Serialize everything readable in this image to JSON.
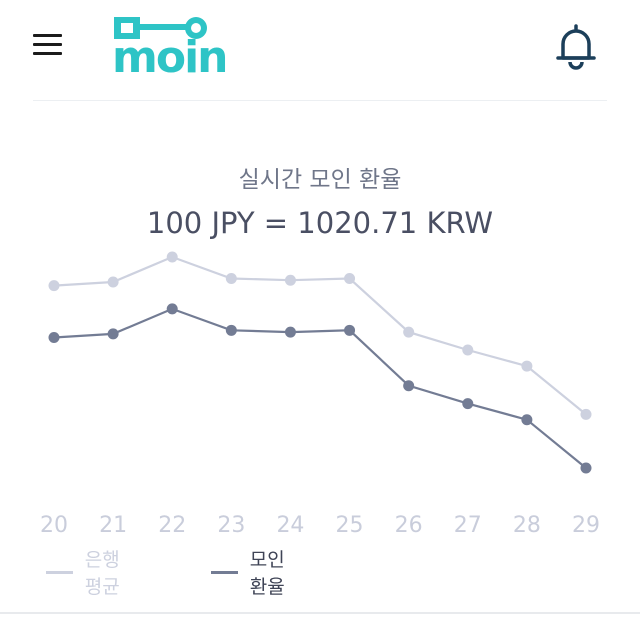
{
  "header": {
    "logo_text": "moin",
    "menu_icon": "hamburger-menu-icon",
    "bell_icon": "bell-icon"
  },
  "exchange": {
    "title": "실시간 모인 환율",
    "rate_text": "100 JPY = 1020.71 KRW"
  },
  "colors": {
    "bank": "#cdd1df",
    "moin": "#737c94",
    "xlabels": "#c9cddb",
    "logo_teal": "#2ec4c6"
  },
  "chart_data": {
    "type": "line",
    "x": [
      "20",
      "21",
      "22",
      "23",
      "24",
      "25",
      "26",
      "27",
      "28",
      "29"
    ],
    "series": [
      {
        "name": "은행 평균",
        "values": [
          1040.2,
          1040.4,
          1041.8,
          1040.6,
          1040.5,
          1040.6,
          1037.6,
          1036.6,
          1035.7,
          1033.0
        ]
      },
      {
        "name": "모인 환율",
        "values": [
          1037.3,
          1037.5,
          1038.9,
          1037.7,
          1037.6,
          1037.7,
          1034.6,
          1033.6,
          1032.7,
          1030.0
        ]
      }
    ],
    "legend_position": "bottom-left",
    "grid": false
  }
}
